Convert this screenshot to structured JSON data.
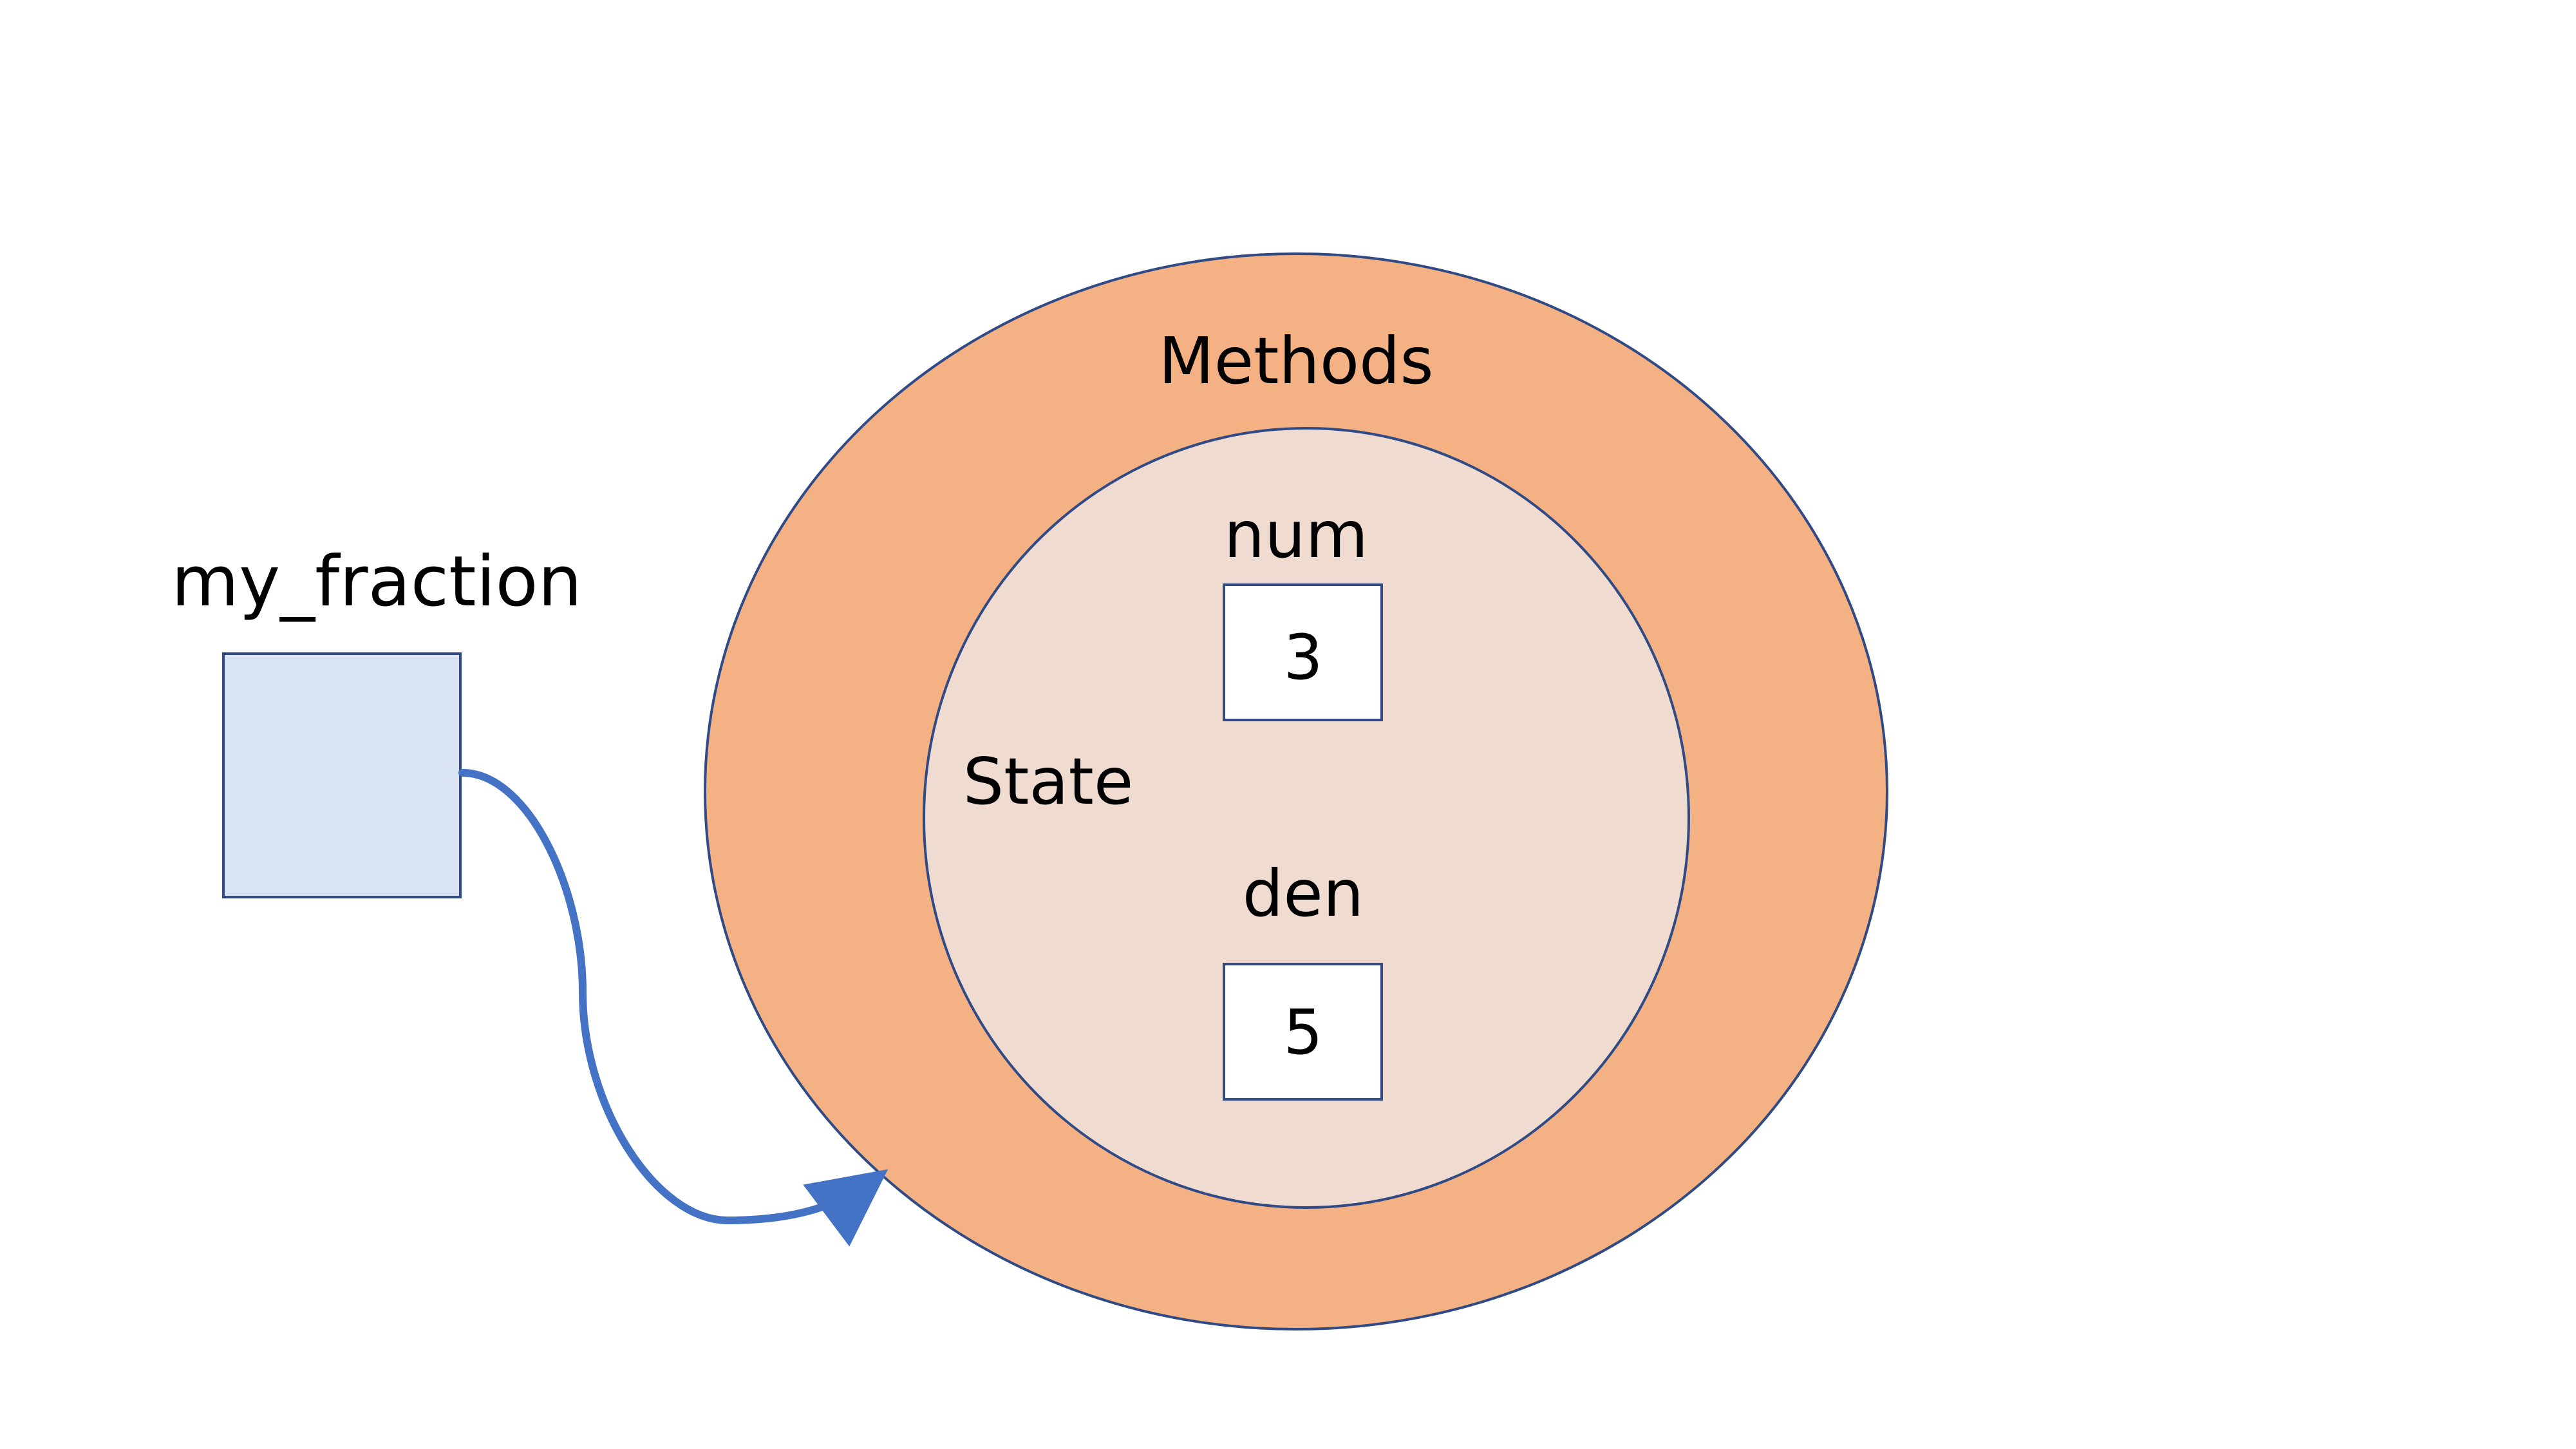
{
  "variable": {
    "name": "my_fraction"
  },
  "object": {
    "outer_label": "Methods",
    "inner_label": "State",
    "fields": [
      {
        "name": "num",
        "value": "3"
      },
      {
        "name": "den",
        "value": "5"
      }
    ]
  },
  "colors": {
    "variable_box_fill": "#dae3f3",
    "outline": "#2f4a85",
    "outer_ellipse_fill": "#f4b183",
    "inner_ellipse_fill": "#efdbd0",
    "value_box_fill": "#ffffff",
    "arrow": "#4472c4"
  }
}
